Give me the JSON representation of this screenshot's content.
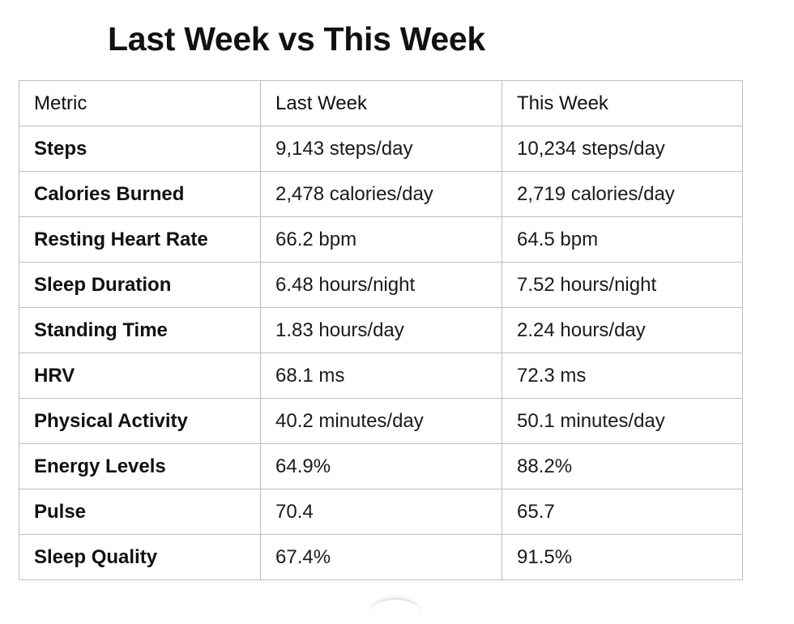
{
  "page": {
    "title": "Last Week vs This Week"
  },
  "table": {
    "headers": [
      "Metric",
      "Last Week",
      "This Week"
    ],
    "rows": [
      {
        "metric": "Steps",
        "last_week": "9,143 steps/day",
        "this_week": "10,234 steps/day"
      },
      {
        "metric": "Calories Burned",
        "last_week": "2,478 calories/day",
        "this_week": "2,719 calories/day"
      },
      {
        "metric": "Resting Heart Rate",
        "last_week": "66.2 bpm",
        "this_week": "64.5 bpm"
      },
      {
        "metric": "Sleep Duration",
        "last_week": "6.48 hours/night",
        "this_week": "7.52 hours/night"
      },
      {
        "metric": "Standing Time",
        "last_week": "1.83 hours/day",
        "this_week": "2.24 hours/day"
      },
      {
        "metric": "HRV",
        "last_week": "68.1 ms",
        "this_week": "72.3 ms"
      },
      {
        "metric": "Physical Activity",
        "last_week": "40.2 minutes/day",
        "this_week": "50.1 minutes/day"
      },
      {
        "metric": "Energy Levels",
        "last_week": "64.9%",
        "this_week": "88.2%"
      },
      {
        "metric": "Pulse",
        "last_week": "70.4",
        "this_week": "65.7"
      },
      {
        "metric": "Sleep Quality",
        "last_week": "67.4%",
        "this_week": "91.5%"
      }
    ]
  }
}
